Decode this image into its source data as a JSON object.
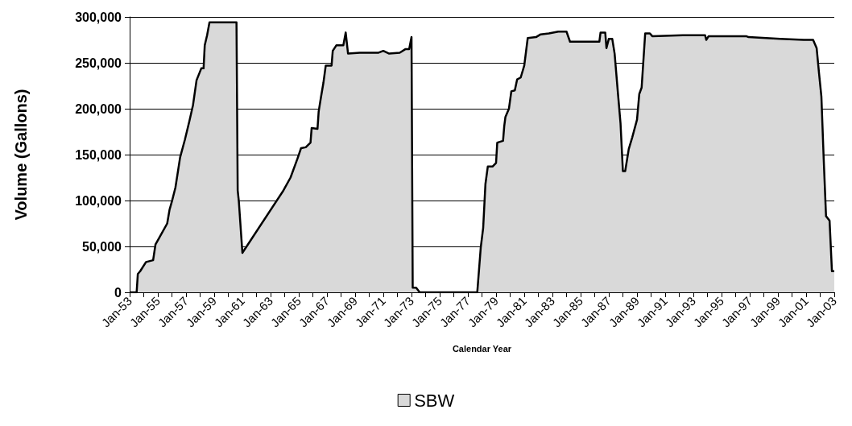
{
  "chart_data": {
    "type": "area",
    "xlabel": "Calendar Year",
    "ylabel": "Volume (Gallons)",
    "xlim": [
      "1953-01",
      "2003-01"
    ],
    "ylim": [
      0,
      300000
    ],
    "xticks": [
      {
        "value": "1953-01",
        "label": "Jan-53"
      },
      {
        "value": "1954-01",
        "label": null
      },
      {
        "value": "1955-01",
        "label": "Jan-55"
      },
      {
        "value": "1956-01",
        "label": null
      },
      {
        "value": "1957-01",
        "label": "Jan-57"
      },
      {
        "value": "1958-01",
        "label": null
      },
      {
        "value": "1959-01",
        "label": "Jan-59"
      },
      {
        "value": "1960-01",
        "label": null
      },
      {
        "value": "1961-01",
        "label": "Jan-61"
      },
      {
        "value": "1962-01",
        "label": null
      },
      {
        "value": "1963-01",
        "label": "Jan-63"
      },
      {
        "value": "1964-01",
        "label": null
      },
      {
        "value": "1965-01",
        "label": "Jan-65"
      },
      {
        "value": "1966-01",
        "label": null
      },
      {
        "value": "1967-01",
        "label": "Jan-67"
      },
      {
        "value": "1968-01",
        "label": null
      },
      {
        "value": "1969-01",
        "label": "Jan-69"
      },
      {
        "value": "1970-01",
        "label": null
      },
      {
        "value": "1971-01",
        "label": "Jan-71"
      },
      {
        "value": "1972-01",
        "label": null
      },
      {
        "value": "1973-01",
        "label": "Jan-73"
      },
      {
        "value": "1974-01",
        "label": null
      },
      {
        "value": "1975-01",
        "label": "Jan-75"
      },
      {
        "value": "1976-01",
        "label": null
      },
      {
        "value": "1977-01",
        "label": "Jan-77"
      },
      {
        "value": "1978-01",
        "label": null
      },
      {
        "value": "1979-01",
        "label": "Jan-79"
      },
      {
        "value": "1980-01",
        "label": null
      },
      {
        "value": "1981-01",
        "label": "Jan-81"
      },
      {
        "value": "1982-01",
        "label": null
      },
      {
        "value": "1983-01",
        "label": "Jan-83"
      },
      {
        "value": "1984-01",
        "label": null
      },
      {
        "value": "1985-01",
        "label": "Jan-85"
      },
      {
        "value": "1986-01",
        "label": null
      },
      {
        "value": "1987-01",
        "label": "Jan-87"
      },
      {
        "value": "1988-01",
        "label": null
      },
      {
        "value": "1989-01",
        "label": "Jan-89"
      },
      {
        "value": "1990-01",
        "label": null
      },
      {
        "value": "1991-01",
        "label": "Jan-91"
      },
      {
        "value": "1992-01",
        "label": null
      },
      {
        "value": "1993-01",
        "label": "Jan-93"
      },
      {
        "value": "1994-01",
        "label": null
      },
      {
        "value": "1995-01",
        "label": "Jan-95"
      },
      {
        "value": "1996-01",
        "label": null
      },
      {
        "value": "1997-01",
        "label": "Jan-97"
      },
      {
        "value": "1998-01",
        "label": null
      },
      {
        "value": "1999-01",
        "label": "Jan-99"
      },
      {
        "value": "2000-01",
        "label": null
      },
      {
        "value": "2001-01",
        "label": "Jan-01"
      },
      {
        "value": "2002-01",
        "label": null
      },
      {
        "value": "2003-01",
        "label": "Jan-03"
      }
    ],
    "yticks": [
      {
        "value": 0,
        "label": "0"
      },
      {
        "value": 50000,
        "label": "50,000"
      },
      {
        "value": 100000,
        "label": "100,000"
      },
      {
        "value": 150000,
        "label": "150,000"
      },
      {
        "value": 200000,
        "label": "200,000"
      },
      {
        "value": 250000,
        "label": "250,000"
      },
      {
        "value": 300000,
        "label": "300,000"
      }
    ],
    "grid": "y",
    "legend": "bottom",
    "marker": "none",
    "line_style": "solid",
    "series": [
      {
        "name": "SBW",
        "color": "#d9d9d9",
        "x": [
          "1953-01",
          "1953-07",
          "1953-08",
          "1953-10",
          "1954-03",
          "1954-09",
          "1954-11",
          "1955-03",
          "1955-09",
          "1955-11",
          "1956-01",
          "1956-04",
          "1956-08",
          "1956-12",
          "1957-04",
          "1957-07",
          "1957-10",
          "1958-02",
          "1958-04",
          "1958-05",
          "1958-07",
          "1958-09",
          "1960-08",
          "1960-09",
          "1960-10",
          "1961-01",
          "1963-12",
          "1964-06",
          "1964-12",
          "1965-03",
          "1965-07",
          "1965-11",
          "1965-12",
          "1966-05",
          "1966-06",
          "1966-08",
          "1966-10",
          "1966-12",
          "1967-05",
          "1967-06",
          "1967-09",
          "1968-03",
          "1968-05",
          "1968-07",
          "1969-05",
          "1970-09",
          "1971-01",
          "1971-06",
          "1972-03",
          "1972-08",
          "1972-11",
          "1973-01",
          "1973-02",
          "1973-05",
          "1973-08",
          "1977-09",
          "1977-12",
          "1978-02",
          "1978-04",
          "1978-06",
          "1978-10",
          "1979-01",
          "1979-02",
          "1979-07",
          "1979-08",
          "1979-09",
          "1979-12",
          "1980-02",
          "1980-05",
          "1980-07",
          "1980-10",
          "1981-01",
          "1981-04",
          "1981-11",
          "1982-03",
          "1982-10",
          "1983-06",
          "1984-01",
          "1984-04",
          "1986-05",
          "1986-06",
          "1986-10",
          "1986-11",
          "1987-01",
          "1987-04",
          "1987-06",
          "1987-09",
          "1987-11",
          "1988-01",
          "1988-03",
          "1988-06",
          "1988-09",
          "1989-01",
          "1989-03",
          "1989-05",
          "1989-08",
          "1989-12",
          "1990-02",
          "1992-04",
          "1993-11",
          "1993-12",
          "1994-02",
          "1996-10",
          "1996-12",
          "1999-03",
          "2000-11",
          "2001-07",
          "2001-10",
          "2001-12",
          "2002-02",
          "2002-04",
          "2002-06",
          "2002-09",
          "2002-11",
          "2003-01"
        ],
        "values": [
          0,
          0,
          20000,
          23000,
          33000,
          35000,
          52000,
          61000,
          75000,
          90000,
          99000,
          114000,
          147000,
          166000,
          187000,
          204000,
          231000,
          244000,
          244000,
          269000,
          280000,
          294000,
          294000,
          111000,
          99000,
          43000,
          111000,
          125000,
          146000,
          157000,
          158000,
          163000,
          179000,
          178000,
          197000,
          213000,
          228000,
          247000,
          247000,
          263000,
          269000,
          269000,
          283000,
          260000,
          261000,
          261000,
          263000,
          260000,
          261000,
          265000,
          265000,
          278000,
          5000,
          5000,
          0,
          0,
          49000,
          70000,
          118000,
          137000,
          137000,
          141000,
          163000,
          165000,
          181000,
          191000,
          200000,
          219000,
          220000,
          232000,
          234000,
          247000,
          277000,
          278000,
          281000,
          282000,
          284000,
          284000,
          273000,
          273000,
          283000,
          283000,
          266000,
          276000,
          276000,
          260000,
          214000,
          184000,
          132000,
          132000,
          156000,
          169000,
          188000,
          216000,
          223000,
          282000,
          282000,
          279000,
          280000,
          280000,
          275000,
          279000,
          279000,
          278000,
          276000,
          275000,
          275000,
          266000,
          239000,
          213000,
          146000,
          83000,
          78000,
          23000,
          23000
        ]
      }
    ]
  }
}
